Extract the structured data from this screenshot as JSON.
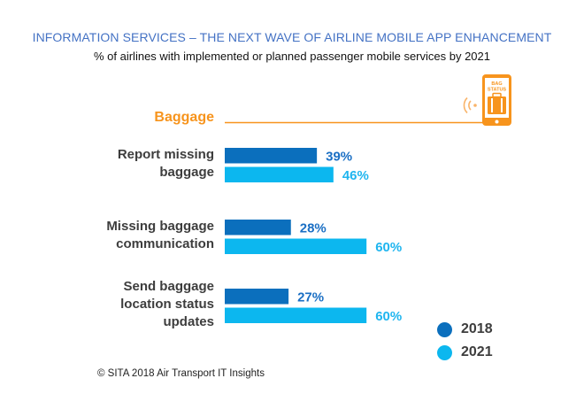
{
  "title": "INFORMATION SERVICES – THE NEXT WAVE OF AIRLINE MOBILE APP ENHANCEMENT",
  "subtitle": "% of airlines with implemented or planned passenger mobile services by 2021",
  "section": {
    "label": "Baggage",
    "icon": "bag-status-phone-icon",
    "icon_text": [
      "BAG",
      "STATUS"
    ]
  },
  "source": "© SITA 2018 Air Transport IT Insights",
  "colors": {
    "accent_orange": "#f7941d",
    "series_2018": "#0b6fbd",
    "series_2021": "#0cb7ef",
    "label_2018": "#1a6fc4",
    "label_2021": "#1fb5ef"
  },
  "chart_data": {
    "type": "bar",
    "orientation": "horizontal",
    "title": "INFORMATION SERVICES – THE NEXT WAVE OF AIRLINE MOBILE APP ENHANCEMENT",
    "subtitle": "% of airlines with implemented or planned passenger mobile services by 2021",
    "categories": [
      [
        "Report missing",
        "baggage"
      ],
      [
        "Missing baggage",
        "communication"
      ],
      [
        "Send baggage",
        "location status",
        "updates"
      ]
    ],
    "series": [
      {
        "name": "2018",
        "values": [
          39,
          28,
          27
        ],
        "labels": [
          "39%",
          "28%",
          "27%"
        ]
      },
      {
        "name": "2021",
        "values": [
          46,
          60,
          60
        ],
        "labels": [
          "46%",
          "60%",
          "60%"
        ]
      }
    ],
    "xlabel": "",
    "ylabel": "",
    "xlim": [
      0,
      100
    ],
    "unit": "%",
    "grid": false,
    "legend_position": "bottom-right"
  }
}
